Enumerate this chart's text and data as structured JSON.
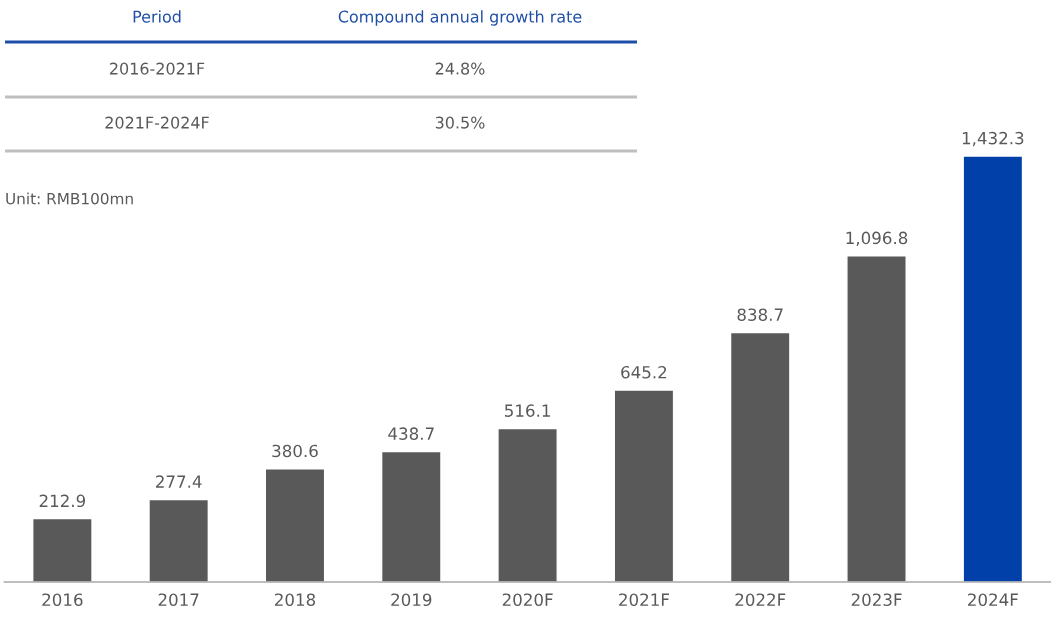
{
  "chart_data": {
    "type": "bar",
    "categories": [
      "2016",
      "2017",
      "2018",
      "2019",
      "2020F",
      "2021F",
      "2022F",
      "2023F",
      "2024F"
    ],
    "values": [
      212.9,
      277.4,
      380.6,
      438.7,
      516.1,
      645.2,
      838.7,
      1096.8,
      1432.3
    ],
    "value_labels": [
      "212.9",
      "277.4",
      "380.6",
      "438.7",
      "516.1",
      "645.2",
      "838.7",
      "1,096.8",
      "1,432.3"
    ],
    "colors": [
      "#595959",
      "#595959",
      "#595959",
      "#595959",
      "#595959",
      "#595959",
      "#595959",
      "#595959",
      "#0040a8"
    ],
    "tick_labels": "x",
    "grid": false,
    "legend": false,
    "annotations": [
      "Period",
      "Compound annual growth rate",
      "2016-2021F",
      "24.8%",
      "2021F-2024F",
      "30.5%",
      "Unit: RMB100mn"
    ]
  }
}
